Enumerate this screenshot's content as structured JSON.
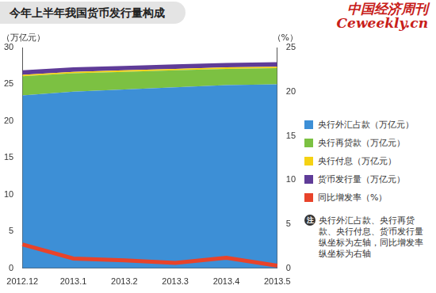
{
  "chart_data": {
    "type": "line",
    "title": "今年上半年我国货币发行量构成",
    "annotations": [
      "中国经济周刊",
      "Ceweekly.cn"
    ],
    "note": {
      "label": "注",
      "text": "央行外汇占款、央行再贷款、央行付息、货币发行量纵坐标为左轴，同比增发率纵坐标为右轴"
    },
    "y_label": "（万亿元）",
    "y2_label": "（%）",
    "categories": [
      "2012.12",
      "2013.1",
      "2013.2",
      "2013.3",
      "2013.4",
      "2013.5"
    ],
    "series": [
      {
        "name": "央行外汇占款（万亿元）",
        "type": "area",
        "color": "#3d8fd6",
        "values": [
          23.5,
          24.0,
          24.3,
          24.6,
          24.9,
          25.0
        ]
      },
      {
        "name": "央行再贷款（万亿元）",
        "type": "area",
        "color": "#7cc142",
        "values": [
          2.6,
          2.5,
          2.4,
          2.3,
          2.2,
          2.2
        ]
      },
      {
        "name": "央行付息（万亿元）",
        "type": "area",
        "color": "#f5d213",
        "values": [
          0.2,
          0.2,
          0.2,
          0.2,
          0.2,
          0.2
        ]
      },
      {
        "name": "货币发行量（万亿元）",
        "type": "area",
        "color": "#5f3c98",
        "values": [
          0.6,
          0.6,
          0.6,
          0.6,
          0.6,
          0.6
        ]
      },
      {
        "name": "同比增发率（%）",
        "type": "line",
        "axis": "y2",
        "color": "#e8432a",
        "values": [
          2.7,
          1.1,
          0.9,
          0.6,
          1.2,
          0.3
        ]
      }
    ],
    "stacked": true,
    "grid": false,
    "legend": "right",
    "ylim": [
      0,
      30
    ],
    "yticks": [
      0,
      5,
      10,
      15,
      20,
      25,
      30
    ],
    "y2lim": [
      0,
      25
    ],
    "y2ticks": [
      0,
      5,
      10,
      15,
      20,
      25
    ]
  }
}
